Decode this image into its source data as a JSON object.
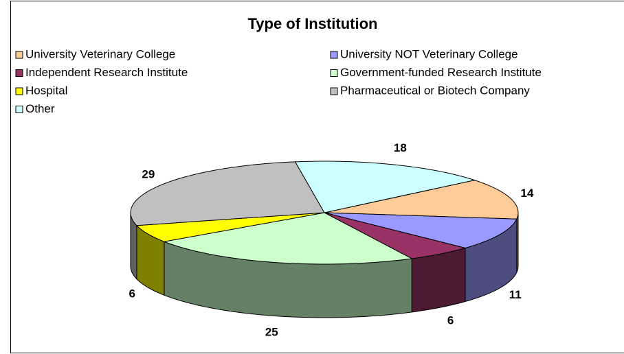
{
  "chart_data": {
    "type": "pie",
    "title": "Type of Institution",
    "categories": [
      "University Veterinary College",
      "University NOT Veterinary College",
      "Independent Research Institute",
      "Government-funded Research Institute",
      "Hospital",
      "Pharmaceutical or Biotech Company",
      "Other"
    ],
    "values": [
      14,
      11,
      6,
      25,
      6,
      29,
      18
    ],
    "colors": [
      "#FFCC99",
      "#9999FF",
      "#993366",
      "#CCFFCC",
      "#FFFF00",
      "#C0C0C0",
      "#CCFFFF"
    ],
    "legend": "top"
  }
}
